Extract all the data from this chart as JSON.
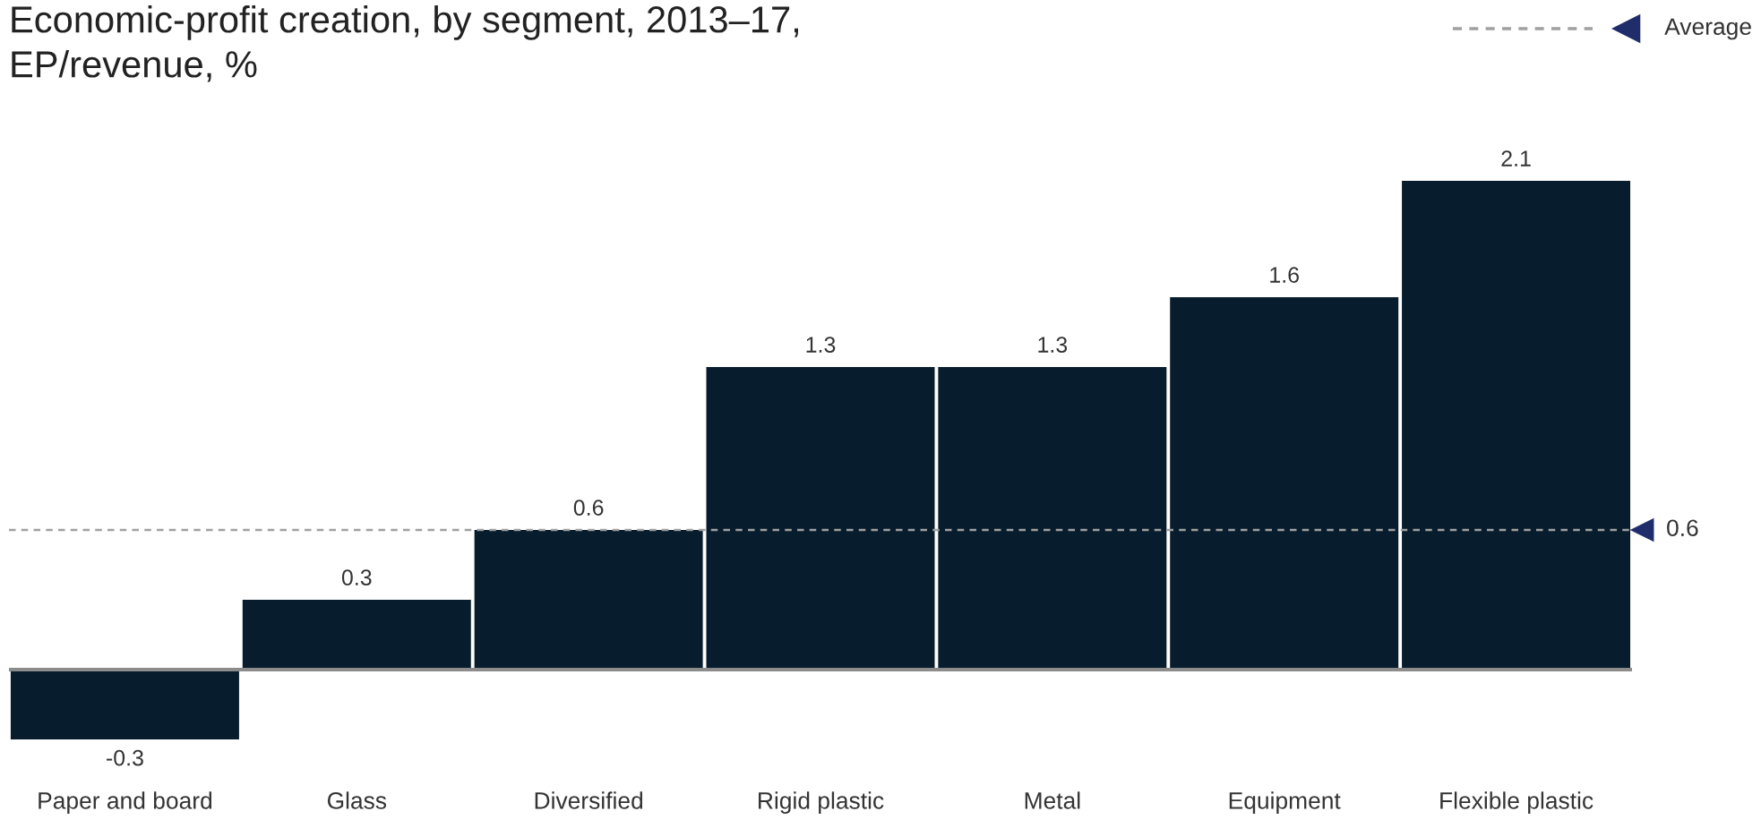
{
  "chart_data": {
    "type": "bar",
    "title": "Economic-profit creation, by segment, 2013–17,",
    "subtitle": "EP/revenue, %",
    "categories": [
      "Paper and board",
      "Glass",
      "Diversified",
      "Rigid plastic",
      "Metal",
      "Equipment",
      "Flexible plastic"
    ],
    "values": [
      -0.3,
      0.3,
      0.6,
      1.3,
      1.3,
      1.6,
      2.1
    ],
    "color": "#071c2c",
    "data_labels": true,
    "tick_labels": "x",
    "ref_lines": [
      {
        "axis": "y",
        "value": 0.6,
        "label": "0.6",
        "color": "#a0a0a0",
        "line_style": "dashed"
      }
    ],
    "annotations": [
      "Average"
    ]
  }
}
